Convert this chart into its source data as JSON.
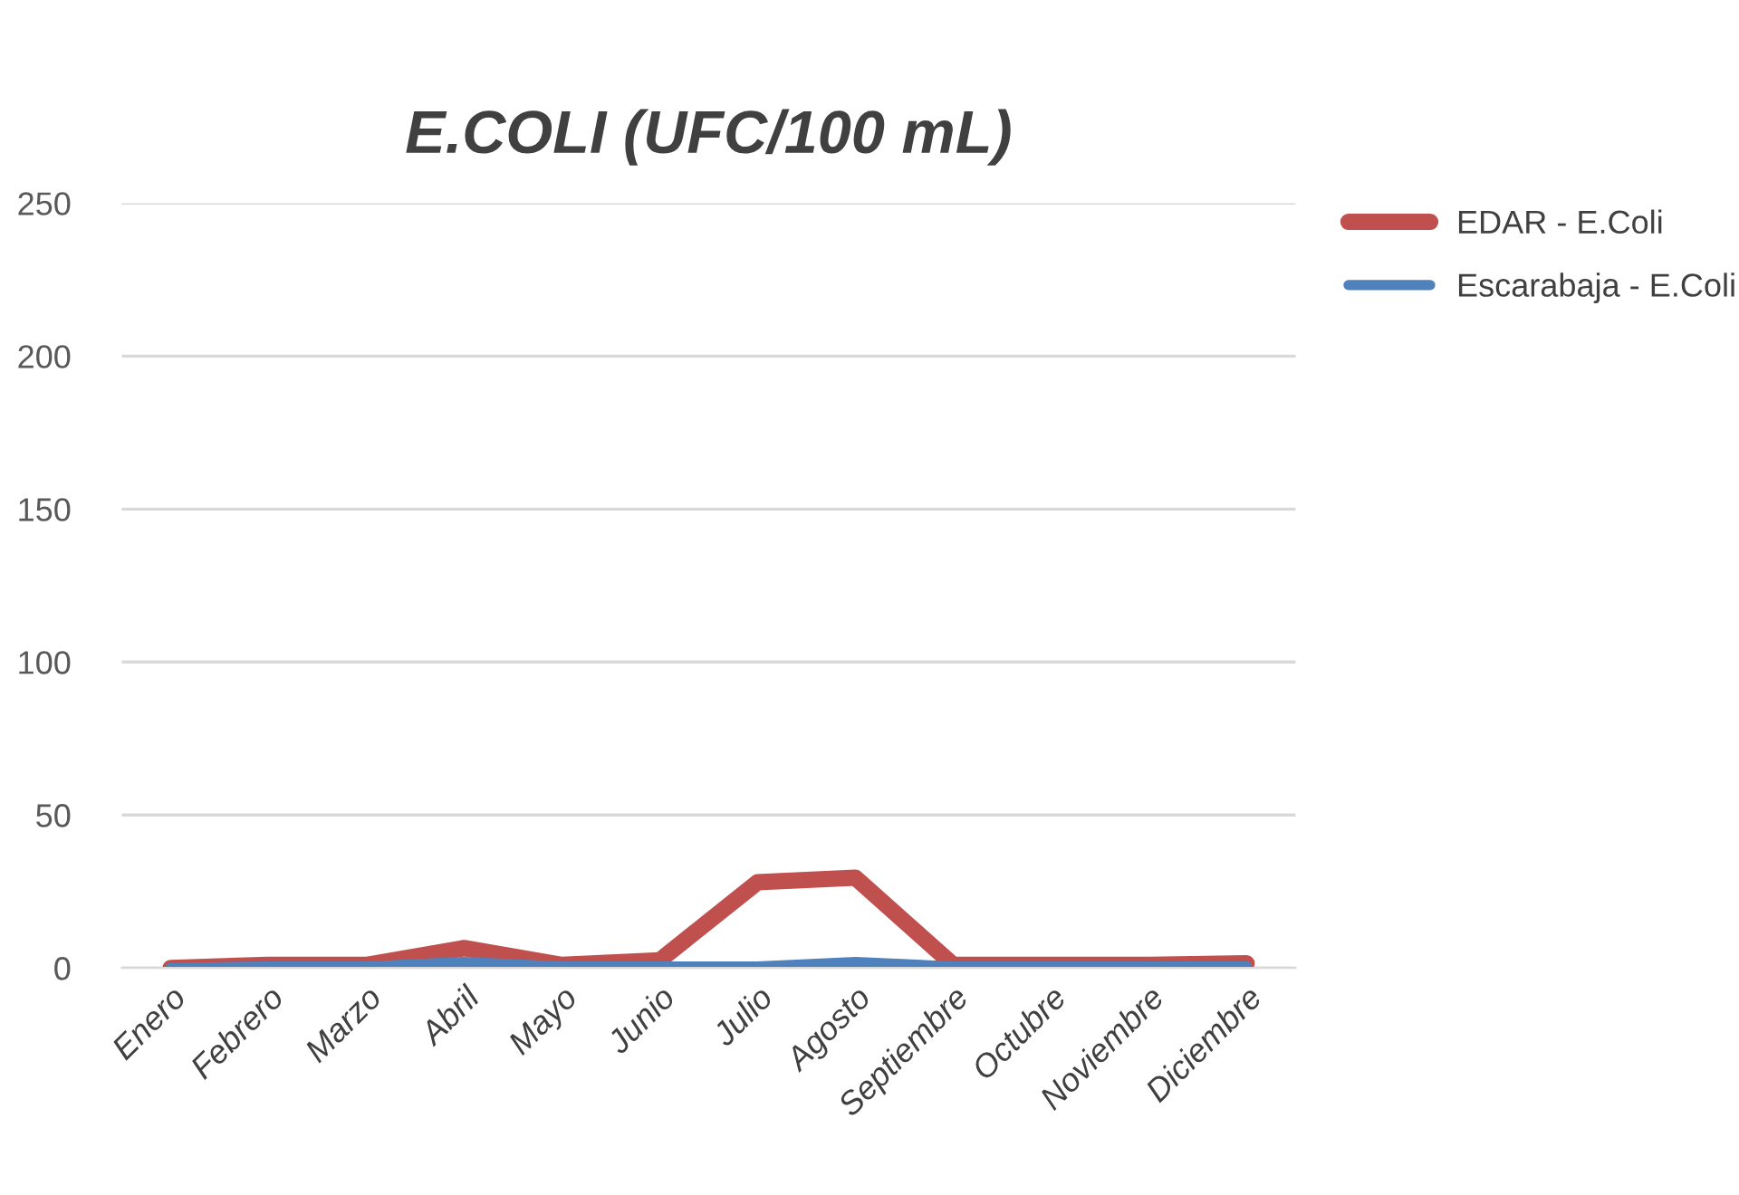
{
  "chart_data": {
    "type": "line",
    "title": "E.COLI (UFC/100 mL)",
    "categories": [
      "Enero",
      "Febrero",
      "Marzo",
      "Abril",
      "Mayo",
      "Junio",
      "Julio",
      "Agosto",
      "Septiembre",
      "Octubre",
      "Noviembre",
      "Diciembre"
    ],
    "series": [
      {
        "name": "EDAR - E.Coli",
        "color": "#c0504d",
        "values": [
          0,
          1,
          1,
          6.5,
          1,
          2.5,
          28,
          29.5,
          1,
          1,
          1,
          1.5
        ]
      },
      {
        "name": "Escarabaja - E.Coli",
        "color": "#4f81bd",
        "values": [
          0,
          0.5,
          0.5,
          2,
          0.5,
          0.5,
          0.5,
          2,
          0.5,
          0.5,
          0.5,
          0.5
        ]
      }
    ],
    "ylim": [
      0,
      250
    ],
    "yticks": [
      0,
      50,
      100,
      150,
      200,
      250
    ],
    "grid": "y",
    "legend": "top right",
    "marker": "none",
    "line_style": "solid"
  }
}
